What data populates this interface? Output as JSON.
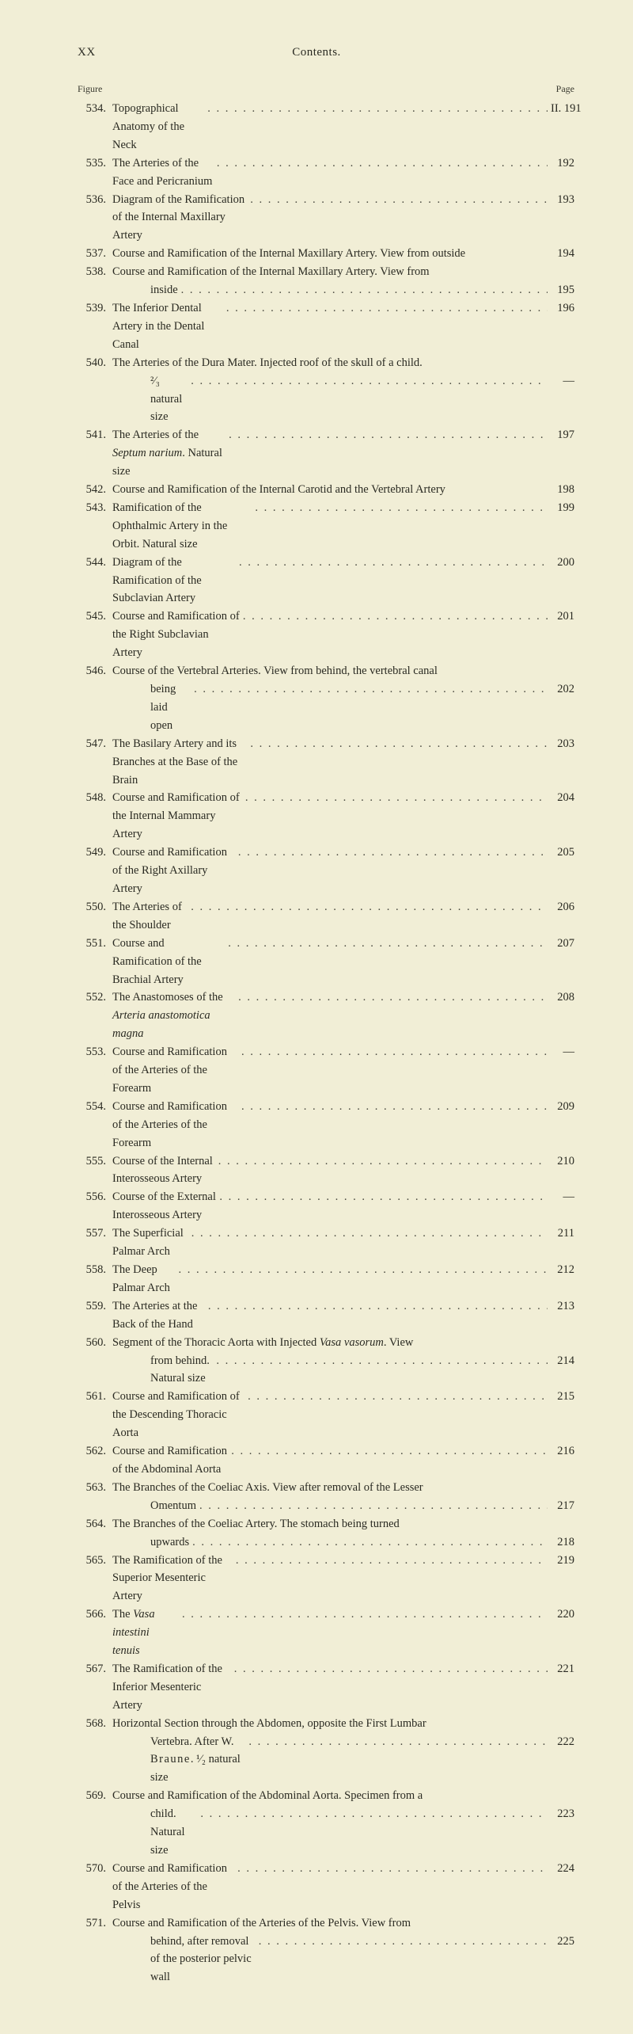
{
  "header": {
    "left": "XX",
    "center": "Contents."
  },
  "labels": {
    "figure": "Figure",
    "page": "Page"
  },
  "entries": [
    {
      "fig": "534.",
      "lines": [
        {
          "text": "Topographical Anatomy of the Neck",
          "page": "II. 191"
        }
      ]
    },
    {
      "fig": "535.",
      "lines": [
        {
          "text": "The Arteries of the Face and Pericranium",
          "page": "192"
        }
      ]
    },
    {
      "fig": "536.",
      "lines": [
        {
          "text": "Diagram of the Ramification of the Internal Maxillary Artery",
          "page": "193"
        }
      ]
    },
    {
      "fig": "537.",
      "lines": [
        {
          "text": "Course and Ramification of the Internal Maxillary Artery. View from outside",
          "page": "194",
          "tight": true
        }
      ]
    },
    {
      "fig": "538.",
      "lines": [
        {
          "text": "Course and Ramification of the Internal Maxillary Artery. View from"
        },
        {
          "text": "inside",
          "page": "195",
          "indent": true
        }
      ]
    },
    {
      "fig": "539.",
      "lines": [
        {
          "text": "The Inferior Dental Artery in the Dental Canal",
          "page": "196"
        }
      ]
    },
    {
      "fig": "540.",
      "lines": [
        {
          "text": "The Arteries of the Dura Mater. Injected roof of the skull of a child."
        },
        {
          "text": "²∕₃ natural size",
          "page": "—",
          "indent": true
        }
      ]
    },
    {
      "fig": "541.",
      "lines": [
        {
          "html": "The Arteries of the <em class='it'>Septum narium</em>. Natural size",
          "page": "197"
        }
      ]
    },
    {
      "fig": "542.",
      "lines": [
        {
          "text": "Course and Ramification of the Internal Carotid and the Vertebral Artery",
          "page": "198",
          "tight": true
        }
      ]
    },
    {
      "fig": "543.",
      "lines": [
        {
          "text": "Ramification of the Ophthalmic Artery in the Orbit. Natural size",
          "page": "199"
        }
      ]
    },
    {
      "fig": "544.",
      "lines": [
        {
          "text": "Diagram of the Ramification of the Subclavian Artery",
          "page": "200"
        }
      ]
    },
    {
      "fig": "545.",
      "lines": [
        {
          "text": "Course and Ramification of the Right Subclavian Artery",
          "page": "201"
        }
      ]
    },
    {
      "fig": "546.",
      "lines": [
        {
          "text": "Course of the Vertebral Arteries. View from behind, the vertebral canal"
        },
        {
          "text": "being laid open",
          "page": "202",
          "indent": true
        }
      ]
    },
    {
      "fig": "547.",
      "lines": [
        {
          "text": "The Basilary Artery and its Branches at the Base of the Brain",
          "page": "203"
        }
      ]
    },
    {
      "fig": "548.",
      "lines": [
        {
          "text": "Course and Ramification of the Internal Mammary Artery",
          "page": "204"
        }
      ]
    },
    {
      "fig": "549.",
      "lines": [
        {
          "text": "Course and Ramification of the Right Axillary Artery",
          "page": "205"
        }
      ]
    },
    {
      "fig": "550.",
      "lines": [
        {
          "text": "The Arteries of the Shoulder",
          "page": "206"
        }
      ]
    },
    {
      "fig": "551.",
      "lines": [
        {
          "text": "Course and Ramification of the Brachial Artery",
          "page": "207"
        }
      ]
    },
    {
      "fig": "552.",
      "lines": [
        {
          "html": "The Anastomoses of the <em class='it'>Arteria anastomotica magna</em>",
          "page": "208"
        }
      ]
    },
    {
      "fig": "553.",
      "lines": [
        {
          "text": "Course and Ramification of the Arteries of the Forearm",
          "page": "—"
        }
      ]
    },
    {
      "fig": "554.",
      "lines": [
        {
          "text": "Course and Ramification of the Arteries of the Forearm",
          "page": "209"
        }
      ]
    },
    {
      "fig": "555.",
      "lines": [
        {
          "text": "Course of the Internal Interosseous Artery",
          "page": "210"
        }
      ]
    },
    {
      "fig": "556.",
      "lines": [
        {
          "text": "Course of the External Interosseous Artery",
          "page": "—"
        }
      ]
    },
    {
      "fig": "557.",
      "lines": [
        {
          "text": "The Superficial Palmar Arch",
          "page": "211"
        }
      ]
    },
    {
      "fig": "558.",
      "lines": [
        {
          "text": "The Deep Palmar Arch",
          "page": "212"
        }
      ]
    },
    {
      "fig": "559.",
      "lines": [
        {
          "text": "The Arteries at the Back of the Hand",
          "page": "213"
        }
      ]
    },
    {
      "fig": "560.",
      "lines": [
        {
          "html": "Segment of the Thoracic Aorta with Injected <em class='it'>Vasa vasorum</em>. View"
        },
        {
          "text": "from behind. Natural size",
          "page": "214",
          "indent": true
        }
      ]
    },
    {
      "fig": "561.",
      "lines": [
        {
          "text": "Course and Ramification of the Descending Thoracic Aorta",
          "page": "215"
        }
      ]
    },
    {
      "fig": "562.",
      "lines": [
        {
          "text": "Course and Ramification of the Abdominal Aorta",
          "page": "216"
        }
      ]
    },
    {
      "fig": "563.",
      "lines": [
        {
          "text": "The Branches of the Coeliac Axis. View after removal of the Lesser"
        },
        {
          "text": "Omentum",
          "page": "217",
          "indent": true
        }
      ]
    },
    {
      "fig": "564.",
      "lines": [
        {
          "text": "The Branches of the Coeliac Artery. The stomach being turned"
        },
        {
          "text": "upwards",
          "page": "218",
          "indent": true
        }
      ]
    },
    {
      "fig": "565.",
      "lines": [
        {
          "text": "The Ramification of the Superior Mesenteric Artery",
          "page": "219"
        }
      ]
    },
    {
      "fig": "566.",
      "lines": [
        {
          "html": "The <em class='it'>Vasa intestini tenuis</em>",
          "page": "220"
        }
      ]
    },
    {
      "fig": "567.",
      "lines": [
        {
          "text": "The Ramification of the Inferior Mesenteric Artery",
          "page": "221"
        }
      ]
    },
    {
      "fig": "568.",
      "lines": [
        {
          "text": "Horizontal Section through the Abdomen, opposite the First Lumbar"
        },
        {
          "html": "Vertebra. After W. <span class='spaced'>Braune</span>. ¹∕₂ natural size",
          "page": "222",
          "indent": true
        }
      ]
    },
    {
      "fig": "569.",
      "lines": [
        {
          "text": "Course and Ramification of the Abdominal Aorta. Specimen from a"
        },
        {
          "text": "child. Natural size",
          "page": "223",
          "indent": true
        }
      ]
    },
    {
      "fig": "570.",
      "lines": [
        {
          "text": "Course and Ramification of the Arteries of the Pelvis",
          "page": "224"
        }
      ]
    },
    {
      "fig": "571.",
      "lines": [
        {
          "text": "Course and Ramification of the Arteries of the Pelvis. View from"
        },
        {
          "text": "behind, after removal of the posterior pelvic wall",
          "page": "225",
          "indent": true
        }
      ]
    }
  ]
}
